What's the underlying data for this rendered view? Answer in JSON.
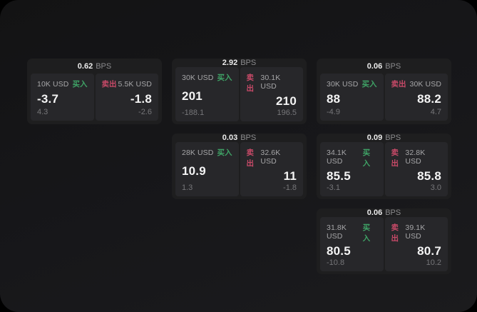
{
  "labels": {
    "buy": "买入",
    "sell": "卖出",
    "bps": "BPS"
  },
  "colors": {
    "buy_green": "#3fa366",
    "sell_red": "#c84a68",
    "page_background": "#17171a",
    "card_background": "#1e1e1f",
    "panel_background": "#27272a"
  },
  "cards": [
    {
      "bps": "0.62",
      "buy": {
        "amount": "10K USD",
        "value": "-3.7",
        "sub": "4.3"
      },
      "sell": {
        "amount": "5.5K USD",
        "value": "-1.8",
        "sub": "-2.6"
      }
    },
    {
      "bps": "2.92",
      "buy": {
        "amount": "30K USD",
        "value": "201",
        "sub": "-188.1"
      },
      "sell": {
        "amount": "30.1K USD",
        "value": "210",
        "sub": "196.5"
      }
    },
    {
      "bps": "0.06",
      "buy": {
        "amount": "30K USD",
        "value": "88",
        "sub": "-4.9"
      },
      "sell": {
        "amount": "30K USD",
        "value": "88.2",
        "sub": "4.7"
      }
    },
    {
      "bps": "0.03",
      "buy": {
        "amount": "28K USD",
        "value": "10.9",
        "sub": "1.3"
      },
      "sell": {
        "amount": "32.6K USD",
        "value": "11",
        "sub": "-1.8"
      }
    },
    {
      "bps": "0.09",
      "buy": {
        "amount": "34.1K USD",
        "value": "85.5",
        "sub": "-3.1"
      },
      "sell": {
        "amount": "32.8K USD",
        "value": "85.8",
        "sub": "3.0"
      }
    },
    {
      "bps": "0.06",
      "buy": {
        "amount": "31.8K USD",
        "value": "80.5",
        "sub": "-10.8"
      },
      "sell": {
        "amount": "39.1K USD",
        "value": "80.7",
        "sub": "10.2"
      }
    }
  ]
}
